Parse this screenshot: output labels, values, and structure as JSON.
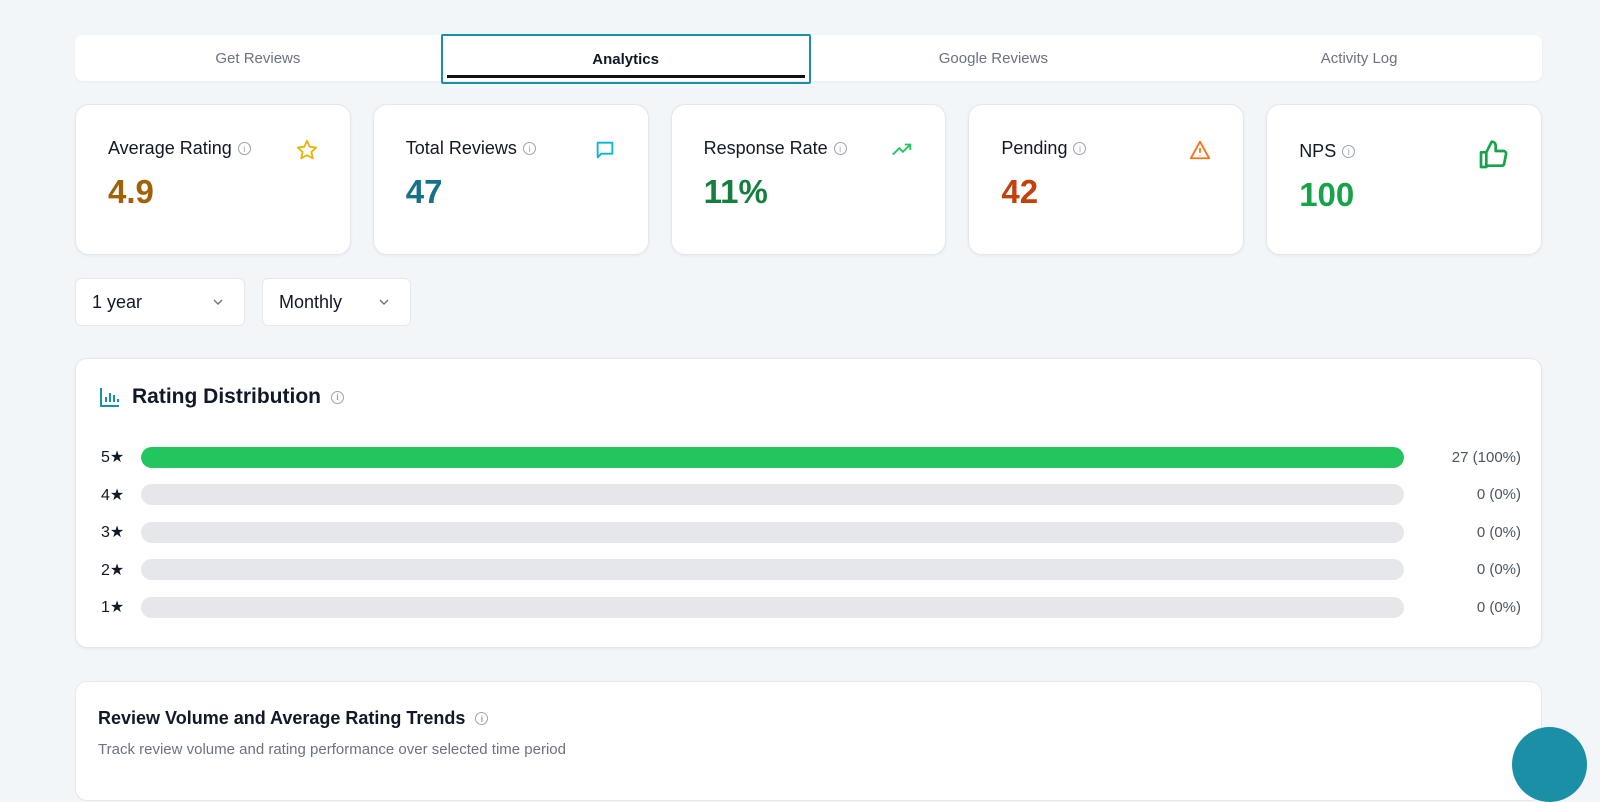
{
  "tabs": [
    {
      "label": "Get Reviews"
    },
    {
      "label": "Analytics",
      "active": true
    },
    {
      "label": "Google Reviews"
    },
    {
      "label": "Activity Log"
    }
  ],
  "cards": [
    {
      "label": "Average Rating",
      "value": "4.9",
      "color": "#a16207",
      "icon": "star-icon"
    },
    {
      "label": "Total Reviews",
      "value": "47",
      "color": "#17718a",
      "icon": "message-square-icon"
    },
    {
      "label": "Response Rate",
      "value": "11%",
      "color": "#15803d",
      "icon": "trending-up-icon"
    },
    {
      "label": "Pending",
      "value": "42",
      "color": "#c2410c",
      "icon": "alert-triangle-icon"
    },
    {
      "label": "NPS",
      "value": "100",
      "color": "#16a34a",
      "icon": "thumbs-up-icon"
    }
  ],
  "filters": {
    "period": "1 year",
    "interval": "Monthly"
  },
  "distribution": {
    "title": "Rating Distribution",
    "rows": [
      {
        "label": "5★",
        "count": "27 (100%)",
        "fraction": 1.0
      },
      {
        "label": "4★",
        "count": "0 (0%)",
        "fraction": 0
      },
      {
        "label": "3★",
        "count": "0 (0%)",
        "fraction": 0
      },
      {
        "label": "2★",
        "count": "0 (0%)",
        "fraction": 0
      },
      {
        "label": "1★",
        "count": "0 (0%)",
        "fraction": 0
      }
    ]
  },
  "trends": {
    "title": "Review Volume and Average Rating Trends",
    "subtitle": "Track review volume and rating performance over selected time period"
  }
}
